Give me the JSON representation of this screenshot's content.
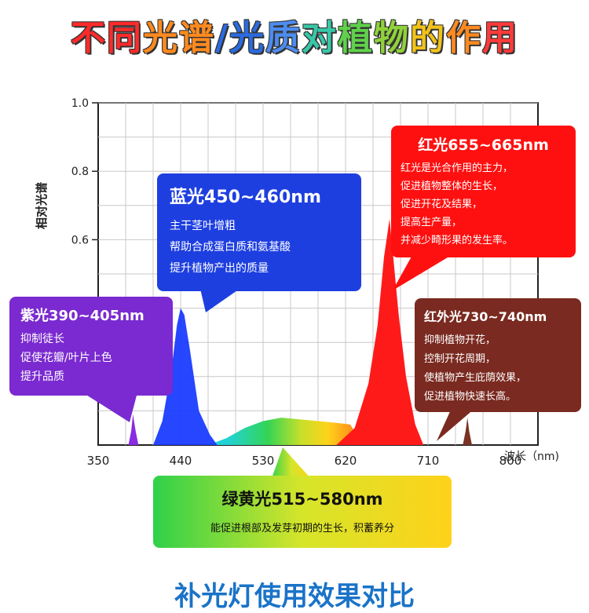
{
  "title": {
    "chars": [
      {
        "t": "不",
        "c": "#ff2a2a"
      },
      {
        "t": "同",
        "c": "#ff2a2a"
      },
      {
        "t": "光",
        "c": "#ff8a1f"
      },
      {
        "t": "谱",
        "c": "#ff8a1f"
      },
      {
        "t": "/",
        "c": "#2b6be0"
      },
      {
        "t": "光",
        "c": "#2b6be0"
      },
      {
        "t": "质",
        "c": "#4d8cf0"
      },
      {
        "t": "对",
        "c": "#37c8a8"
      },
      {
        "t": "植",
        "c": "#5fd14b"
      },
      {
        "t": "物",
        "c": "#8fd13a"
      },
      {
        "t": "的",
        "c": "#f2c21b"
      },
      {
        "t": "作",
        "c": "#ff8a1f"
      },
      {
        "t": "用",
        "c": "#ff3a3a"
      }
    ]
  },
  "chart_data": {
    "type": "area",
    "ylabel": "相对光谱",
    "xlabel": "波长（nm)",
    "xlim": [
      350,
      830
    ],
    "ylim": [
      0,
      1.0
    ],
    "x_ticks": [
      350,
      440,
      530,
      620,
      710,
      800
    ],
    "y_ticks": [
      0.6,
      0.8,
      1.0
    ],
    "y_tick_labels": [
      "0.6",
      "0.8",
      "1.0"
    ],
    "grid": true,
    "series": [
      {
        "color": "#8a2be2",
        "points": [
          [
            383,
            0
          ],
          [
            386,
            0.04
          ],
          [
            388,
            0.09
          ],
          [
            391,
            0.04
          ],
          [
            394,
            0
          ]
        ]
      },
      {
        "color": "#1a3cff",
        "points": [
          [
            410,
            0
          ],
          [
            420,
            0.07
          ],
          [
            430,
            0.22
          ],
          [
            436,
            0.35
          ],
          [
            440,
            0.4
          ],
          [
            444,
            0.38
          ],
          [
            450,
            0.28
          ],
          [
            460,
            0.1
          ],
          [
            472,
            0.03
          ],
          [
            480,
            0
          ]
        ]
      },
      {
        "color": "#44cc33",
        "points": [
          [
            470,
            0
          ],
          [
            490,
            0.02
          ],
          [
            510,
            0.05
          ],
          [
            530,
            0.07
          ],
          [
            550,
            0.08
          ],
          [
            570,
            0.075
          ],
          [
            590,
            0.07
          ],
          [
            610,
            0.065
          ],
          [
            625,
            0.06
          ],
          [
            640,
            0
          ]
        ]
      },
      {
        "color": "#ff1a1a",
        "points": [
          [
            610,
            0
          ],
          [
            630,
            0.05
          ],
          [
            645,
            0.18
          ],
          [
            655,
            0.35
          ],
          [
            662,
            0.55
          ],
          [
            668,
            0.66
          ],
          [
            672,
            0.55
          ],
          [
            678,
            0.38
          ],
          [
            686,
            0.2
          ],
          [
            696,
            0.06
          ],
          [
            705,
            0
          ]
        ]
      },
      {
        "color": "#7a3325",
        "points": [
          [
            748,
            0
          ],
          [
            751,
            0.04
          ],
          [
            753,
            0.08
          ],
          [
            755,
            0.04
          ],
          [
            758,
            0
          ]
        ]
      }
    ]
  },
  "callouts": {
    "blue": {
      "head": "蓝光450~460nm",
      "lines": [
        "主干茎叶增粗",
        "帮助合成蛋白质和氨基酸",
        "提升植物产出的质量"
      ],
      "bg": "#1e3fe0"
    },
    "purple": {
      "head": "紫光390~405nm",
      "lines": [
        "抑制徒长",
        "促使花瓣/叶片上色",
        "提升品质"
      ],
      "bg": "#7a2ad0"
    },
    "red": {
      "head": "红光655~665nm",
      "lines": [
        "红光是光合作用的主力，",
        "促进植物整体的生长，",
        "促进开花及结果，",
        "提高生产量，",
        "并减少畸形果的发生率。"
      ],
      "bg": "#ff1010"
    },
    "ir": {
      "head": "红外光730~740nm",
      "lines": [
        "抑制植物开花，",
        "控制开花周期，",
        "使植物产生庇荫效果，",
        "促进植物快速长高。"
      ],
      "bg": "#7a2a20"
    },
    "green": {
      "head": "绿黄光515~580nm",
      "lines": [
        "能促进根部及发芽初期的生长，积蓄养分"
      ]
    }
  },
  "bottom_text": "补光灯使用效果对比"
}
